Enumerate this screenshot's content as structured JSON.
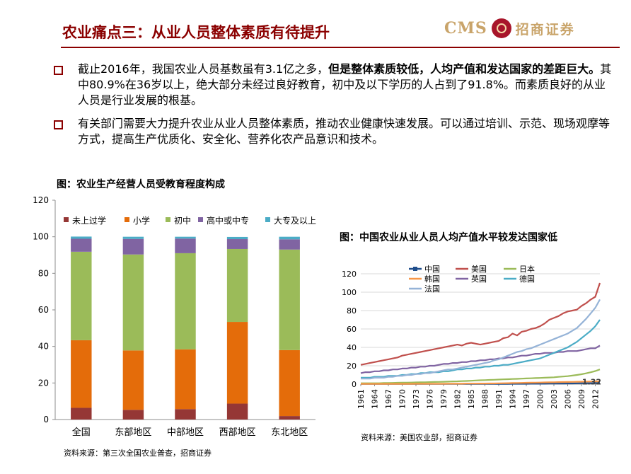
{
  "header": {
    "title": "农业痛点三：从业人员整体素质有待提升",
    "logo_text": "CMS",
    "logo_cn": "招商证券"
  },
  "bullets": [
    {
      "p1": "截止2016年，我国农业人员基数虽有3.1亿之多，",
      "bold": "但是整体素质较低，人均产值和发达国家的差距巨大。",
      "p2": "其中80.9%在36岁以上，绝大部分未经过良好教育，初中及以下学历的人占到了91.8%。而素质良好的从业人员是行业发展的根基。"
    },
    {
      "p1": "有关部门需要大力提升农业从业人员整体素质，推动农业健康快速发展。可以通过培训、示范、现场观摩等方式，提高生产优质化、安全化、营养化农产品意识和技术。"
    }
  ],
  "left_chart": {
    "caption": "图：农业生产经营人员受教育程度构成",
    "source": "资料来源：第三次全国农业普查，招商证券"
  },
  "right_chart": {
    "caption": "图：中国农业从业人员人均产值水平较发达国家低",
    "source": "资料来源：美国农业部，招商证券",
    "end_label": "1.32"
  },
  "chart_data": [
    {
      "type": "bar",
      "stacked": true,
      "categories": [
        "全国",
        "东部地区",
        "中部地区",
        "西部地区",
        "东北地区"
      ],
      "series": [
        {
          "name": "未上过学",
          "color": "#953735",
          "values": [
            6.4,
            5.3,
            5.7,
            8.7,
            1.9
          ]
        },
        {
          "name": "小学",
          "color": "#e46c0a",
          "values": [
            37.0,
            32.5,
            32.7,
            44.7,
            36.1
          ]
        },
        {
          "name": "初中",
          "color": "#9bbb59",
          "values": [
            48.4,
            52.5,
            52.6,
            39.9,
            55.0
          ]
        },
        {
          "name": "高中或中专",
          "color": "#8064a2",
          "values": [
            7.1,
            8.5,
            8.0,
            5.4,
            5.6
          ]
        },
        {
          "name": "大专及以上",
          "color": "#4bacc6",
          "values": [
            1.2,
            1.2,
            1.0,
            1.2,
            1.4
          ]
        }
      ],
      "ylim": [
        0,
        120
      ],
      "yticks": [
        0,
        20,
        40,
        60,
        80,
        100,
        120
      ],
      "legend": "top"
    },
    {
      "type": "line",
      "x": [
        1961,
        1962,
        1963,
        1964,
        1965,
        1966,
        1967,
        1968,
        1969,
        1970,
        1971,
        1972,
        1973,
        1974,
        1975,
        1976,
        1977,
        1978,
        1979,
        1980,
        1981,
        1982,
        1983,
        1984,
        1985,
        1986,
        1987,
        1988,
        1989,
        1990,
        1991,
        1992,
        1993,
        1994,
        1995,
        1996,
        1997,
        1998,
        1999,
        2000,
        2001,
        2002,
        2003,
        2004,
        2005,
        2006,
        2007,
        2008,
        2009,
        2010,
        2011,
        2012,
        2013
      ],
      "xticks": [
        1961,
        1964,
        1967,
        1970,
        1973,
        1976,
        1979,
        1982,
        1985,
        1988,
        1991,
        1994,
        1997,
        2000,
        2003,
        2006,
        2009,
        2012
      ],
      "ylim": [
        0,
        120
      ],
      "yticks": [
        0,
        20,
        40,
        60,
        80,
        100,
        120
      ],
      "legend": "top-left",
      "series": [
        {
          "name": "中国",
          "color": "#1f4e8c",
          "values": [
            0.2,
            0.2,
            0.2,
            0.2,
            0.2,
            0.2,
            0.2,
            0.2,
            0.2,
            0.2,
            0.2,
            0.2,
            0.2,
            0.2,
            0.2,
            0.2,
            0.2,
            0.2,
            0.2,
            0.2,
            0.2,
            0.3,
            0.3,
            0.3,
            0.3,
            0.3,
            0.3,
            0.3,
            0.3,
            0.3,
            0.3,
            0.3,
            0.3,
            0.4,
            0.4,
            0.4,
            0.4,
            0.5,
            0.5,
            0.5,
            0.5,
            0.6,
            0.6,
            0.7,
            0.7,
            0.8,
            0.8,
            0.9,
            1.0,
            1.0,
            1.1,
            1.2,
            1.32
          ]
        },
        {
          "name": "美国",
          "color": "#c0504d",
          "values": [
            21,
            22,
            23,
            24,
            25,
            26,
            27,
            28,
            29,
            31,
            32,
            33,
            34,
            35,
            36,
            37,
            38,
            39,
            40,
            41,
            42,
            43,
            42,
            44,
            45,
            44,
            43,
            44,
            45,
            46,
            47,
            50,
            51,
            55,
            53,
            57,
            58,
            60,
            61,
            63,
            66,
            70,
            72,
            74,
            77,
            79,
            80,
            81,
            85,
            88,
            92,
            95,
            110
          ]
        },
        {
          "name": "日本",
          "color": "#9bbb59",
          "values": [
            1,
            1,
            1,
            1,
            1,
            1.2,
            1.3,
            1.4,
            1.5,
            1.6,
            1.7,
            1.8,
            1.9,
            2,
            2.1,
            2.2,
            2.4,
            2.5,
            2.6,
            2.8,
            3,
            3.1,
            3.3,
            3.5,
            3.7,
            4,
            4.2,
            4.4,
            4.6,
            4.8,
            5,
            5.2,
            5.4,
            5.6,
            5.8,
            6,
            6.2,
            6.4,
            6.6,
            6.8,
            7,
            7.2,
            7.5,
            7.9,
            8.3,
            8.7,
            9.3,
            10,
            10.8,
            11.8,
            12.9,
            14.2,
            16
          ]
        },
        {
          "name": "韩国",
          "color": "#f79646",
          "values": [
            0.3,
            0.3,
            0.3,
            0.3,
            0.3,
            0.3,
            0.3,
            0.3,
            0.3,
            0.3,
            0.3,
            0.3,
            0.4,
            0.4,
            0.4,
            0.4,
            0.4,
            0.4,
            0.4,
            0.5,
            0.5,
            0.5,
            0.5,
            0.6,
            0.6,
            0.6,
            0.7,
            0.7,
            0.8,
            0.8,
            0.9,
            1,
            1.1,
            1.2,
            1.3,
            1.4,
            1.5,
            1.6,
            1.7,
            1.8,
            1.9,
            2,
            2.1,
            2.2,
            2.3,
            2.4,
            2.5,
            2.6,
            2.7,
            2.8,
            2.9,
            3,
            3.1
          ]
        },
        {
          "name": "英国",
          "color": "#8064a2",
          "values": [
            12,
            13,
            13,
            14,
            14,
            15,
            15,
            16,
            16,
            17,
            17,
            18,
            18,
            19,
            19,
            20,
            20,
            21,
            22,
            22,
            23,
            23,
            24,
            24,
            25,
            25,
            26,
            26,
            27,
            27,
            28,
            28,
            29,
            29,
            30,
            31,
            31,
            32,
            33,
            33,
            34,
            34,
            34,
            35,
            35,
            36,
            36,
            36,
            37,
            38,
            39,
            39,
            42
          ]
        },
        {
          "name": "德国",
          "color": "#4bacc6",
          "values": [
            7,
            7,
            7,
            8,
            8,
            8,
            9,
            9,
            9,
            10,
            10,
            11,
            11,
            12,
            12,
            13,
            13,
            13,
            14,
            14,
            15,
            16,
            16,
            17,
            17,
            18,
            18,
            19,
            19,
            20,
            20,
            21,
            21,
            22,
            23,
            24,
            25,
            26,
            27,
            28,
            30,
            32,
            34,
            36,
            38,
            40,
            43,
            46,
            50,
            54,
            58,
            63,
            70
          ]
        },
        {
          "name": "法国",
          "color": "#95b3d7",
          "values": [
            6,
            6,
            6,
            7,
            7,
            7,
            8,
            8,
            9,
            9,
            10,
            10,
            11,
            11,
            12,
            12,
            13,
            14,
            15,
            16,
            16,
            17,
            18,
            19,
            20,
            21,
            22,
            23,
            24,
            26,
            27,
            29,
            31,
            33,
            35,
            36,
            38,
            39,
            41,
            43,
            45,
            47,
            49,
            51,
            53,
            55,
            58,
            61,
            66,
            71,
            77,
            83,
            92
          ]
        }
      ]
    }
  ]
}
